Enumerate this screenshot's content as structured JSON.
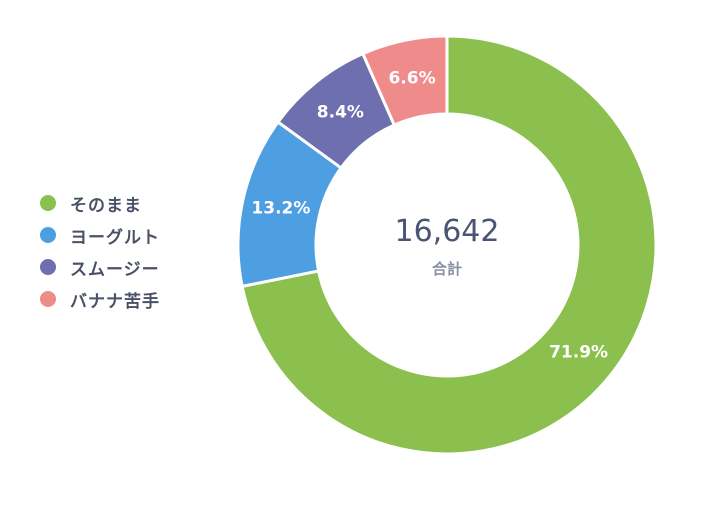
{
  "chart_data": {
    "type": "pie",
    "donut": true,
    "categories": [
      "そのまま",
      "ヨーグルト",
      "スムージー",
      "バナナ苦手"
    ],
    "values": [
      71.9,
      13.2,
      8.4,
      6.6
    ],
    "data_labels": [
      "71.9%",
      "13.2%",
      "8.4%",
      "6.6%"
    ],
    "colors": [
      "#8bc04e",
      "#4e9ee2",
      "#6d6fae",
      "#f08b8b"
    ],
    "total": "16,642",
    "total_label": "合計",
    "legend_position": "left"
  }
}
